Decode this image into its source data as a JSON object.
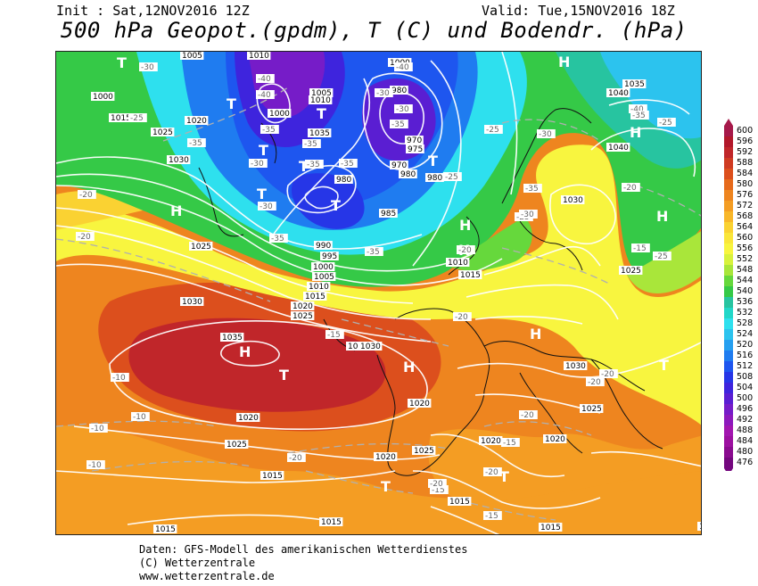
{
  "header": {
    "init": "Init : Sat,12NOV2016 12Z",
    "valid": "Valid: Tue,15NOV2016 18Z",
    "title": "500 hPa Geopot.(gpdm), T (C) und Bodendr. (hPa)"
  },
  "footer": {
    "line1": "Daten: GFS-Modell des amerikanischen Wetterdienstes",
    "line2": "(C) Wetterzentrale",
    "line3": "www.wetterzentrale.de"
  },
  "legend": {
    "levels": [
      "600",
      "596",
      "592",
      "588",
      "584",
      "580",
      "576",
      "572",
      "568",
      "564",
      "560",
      "556",
      "552",
      "548",
      "544",
      "540",
      "536",
      "532",
      "528",
      "524",
      "520",
      "516",
      "512",
      "508",
      "504",
      "500",
      "496",
      "492",
      "488",
      "484",
      "480",
      "476"
    ],
    "colors": [
      "#a6194a",
      "#b2182b",
      "#c0262a",
      "#cf3b22",
      "#dc4f1d",
      "#e66a1c",
      "#ee851f",
      "#f49d23",
      "#f8b72a",
      "#fad232",
      "#fae63a",
      "#f8f53f",
      "#d8f23c",
      "#a9e63a",
      "#66d83c",
      "#35c947",
      "#27c4a0",
      "#22d7c8",
      "#2ee0ee",
      "#2cc3ee",
      "#259ff0",
      "#1f7cf0",
      "#1e56ef",
      "#2636e7",
      "#3e24dd",
      "#5a1ed2",
      "#761cc8",
      "#8d19bc",
      "#a216af",
      "#9c10a0",
      "#8a0b8f",
      "#74077e"
    ]
  },
  "map": {
    "highs": [
      "H",
      "H",
      "H",
      "H",
      "H",
      "H",
      "H",
      "H",
      "H"
    ],
    "lows": [
      "T",
      "T",
      "T",
      "T",
      "T",
      "T",
      "T",
      "T",
      "T",
      "T",
      "T",
      "T"
    ],
    "isobar_labels": [
      "1000",
      "1005",
      "1010",
      "1015",
      "1020",
      "1025",
      "1030",
      "1035",
      "1000",
      "1005",
      "1010",
      "1000",
      "980",
      "970",
      "975",
      "970",
      "980",
      "980",
      "980",
      "985",
      "990",
      "995",
      "1000",
      "1005",
      "1010",
      "1015",
      "1020",
      "1025",
      "1030",
      "1030",
      "1025",
      "1020",
      "1015",
      "1010",
      "1015",
      "1025",
      "1030",
      "1035",
      "1040",
      "1040",
      "1035",
      "1030",
      "1025",
      "1020",
      "1020",
      "1015",
      "1015",
      "1015",
      "1020",
      "1025",
      "1030",
      "1025",
      "1020",
      "1015",
      "1010"
    ],
    "temp_labels": [
      "-25",
      "-30",
      "-35",
      "-40",
      "-40",
      "-35",
      "-30",
      "-35",
      "-35",
      "-40",
      "-35",
      "-30",
      "-35",
      "-30",
      "-30",
      "-35",
      "-20",
      "-20",
      "-25",
      "-20",
      "-25",
      "-30",
      "-35",
      "-40",
      "-35",
      "-25",
      "-20",
      "-15",
      "-20",
      "-20",
      "-15",
      "-10",
      "-10",
      "-10",
      "-10",
      "-15",
      "-20",
      "-20",
      "-15",
      "-20",
      "-15",
      "-20",
      "-20",
      "-25",
      "-25",
      "-30",
      "-35"
    ]
  }
}
